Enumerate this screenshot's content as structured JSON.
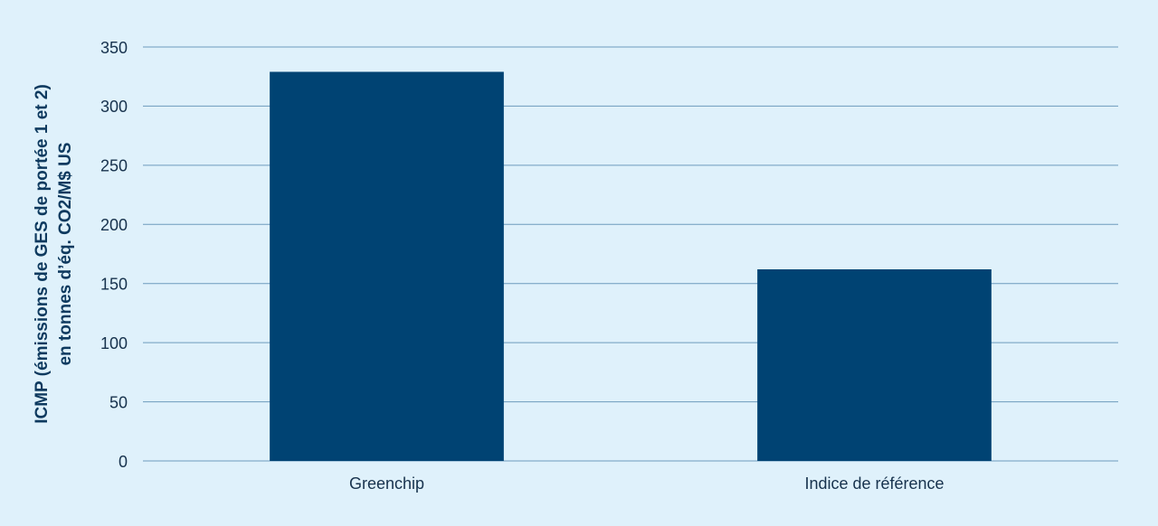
{
  "chart_data": {
    "type": "bar",
    "ylabel": [
      "ICMP (émissions de GES de portée 1 et 2)",
      "en tonnes d’éq. CO2/M$ US"
    ],
    "categories": [
      "Greenchip",
      "Indice de référence"
    ],
    "values": [
      329,
      162
    ],
    "color": "#004373",
    "ylim": [
      0,
      350
    ],
    "yticks": [
      0,
      50,
      100,
      150,
      200,
      250,
      300,
      350
    ],
    "grid": true
  }
}
